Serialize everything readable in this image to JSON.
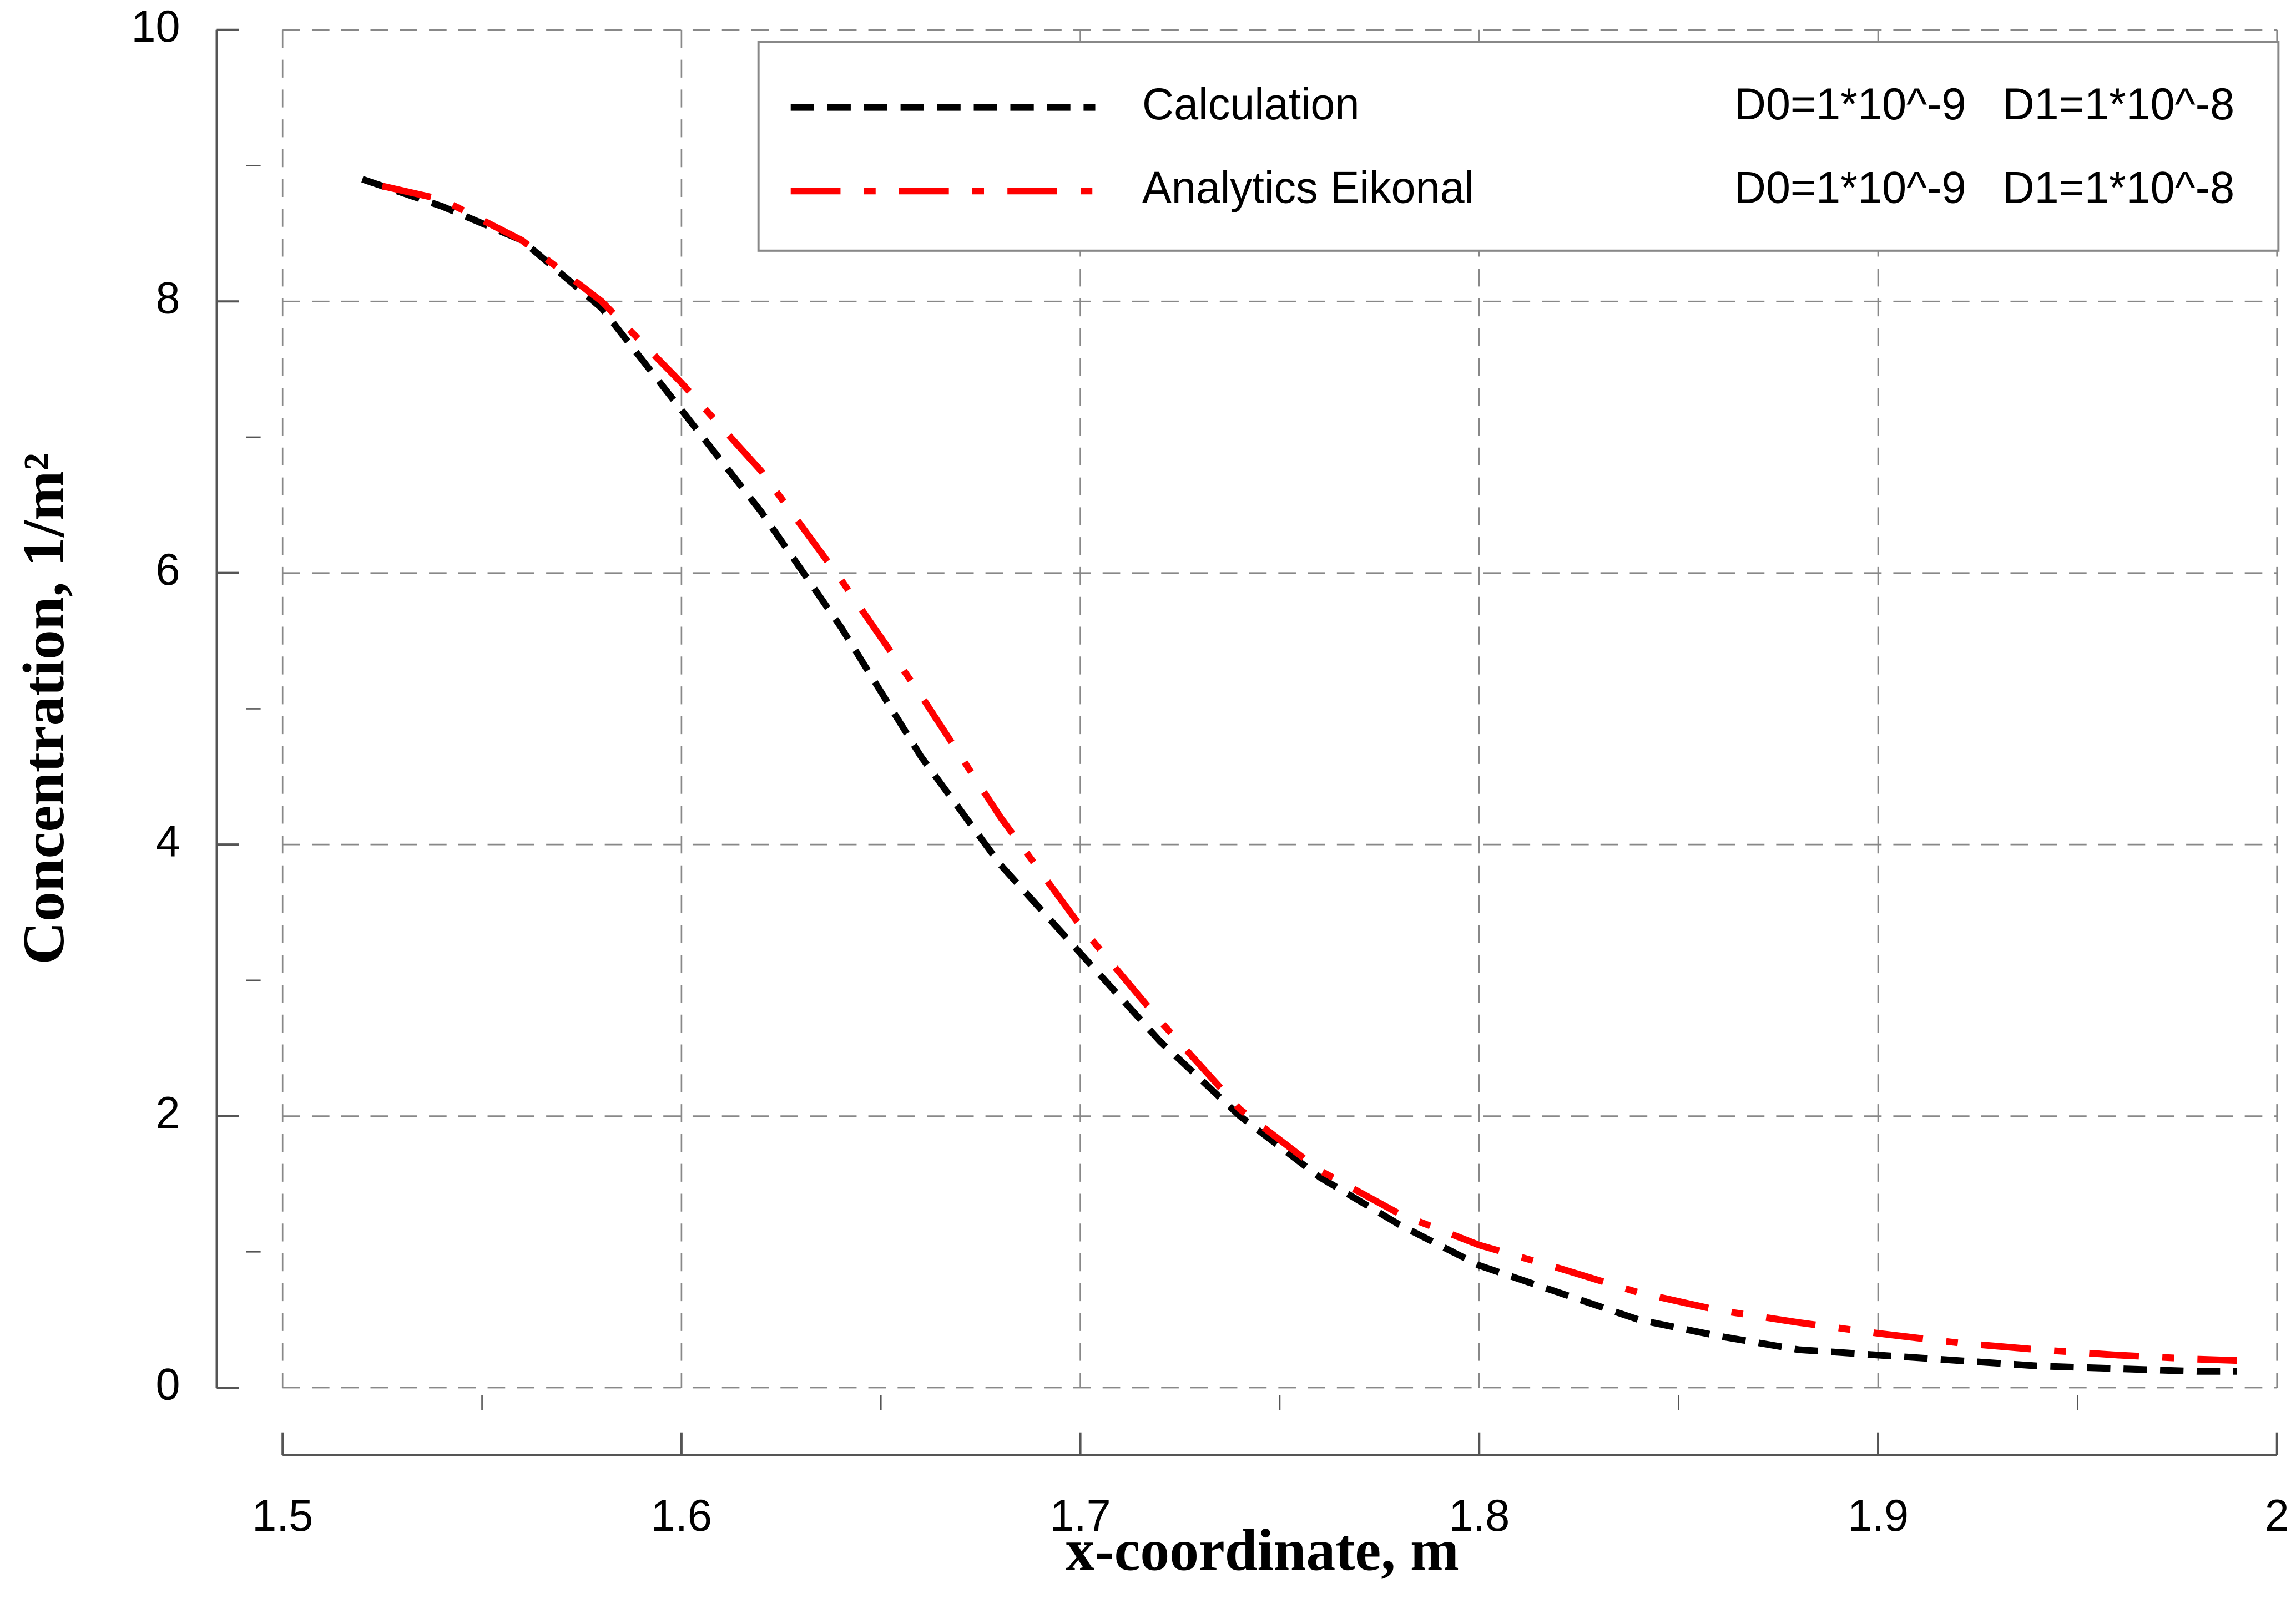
{
  "chart_data": {
    "type": "line",
    "x_label": "x-coordinate, m",
    "y_label": "Concentration, 1/m²",
    "xlim": [
      1.5,
      2
    ],
    "xticks": [
      1.5,
      1.6,
      1.7,
      1.8,
      1.9,
      2
    ],
    "xminorticks": [
      1.55,
      1.65,
      1.75,
      1.85,
      1.95
    ],
    "ylim": [
      0,
      10
    ],
    "yticks": [
      0,
      2,
      4,
      6,
      8,
      10
    ],
    "yminorticks": [
      1,
      3,
      5,
      7,
      9
    ],
    "grid": true,
    "legend": "upper right",
    "series": [
      {
        "name": "Calculation",
        "description": "D0=1*10^-9   D1=1*10^-8",
        "color": "#000000",
        "dash": "dashed",
        "x": [
          1.52,
          1.54,
          1.56,
          1.58,
          1.6,
          1.62,
          1.64,
          1.66,
          1.68,
          1.7,
          1.72,
          1.74,
          1.76,
          1.78,
          1.8,
          1.82,
          1.84,
          1.86,
          1.88,
          1.9,
          1.92,
          1.94,
          1.96,
          1.98,
          1.99
        ],
        "values": [
          8.9,
          8.7,
          8.45,
          7.95,
          7.2,
          6.45,
          5.6,
          4.65,
          3.85,
          3.2,
          2.55,
          2.0,
          1.55,
          1.2,
          0.9,
          0.7,
          0.5,
          0.38,
          0.28,
          0.24,
          0.2,
          0.16,
          0.14,
          0.12,
          0.12
        ]
      },
      {
        "name": "Analytics Eikonal",
        "description": "D0=1*10^-9   D1=1*10^-8",
        "color": "#ff0000",
        "dash": "dashdot",
        "x": [
          1.525,
          1.54,
          1.56,
          1.58,
          1.6,
          1.62,
          1.64,
          1.66,
          1.68,
          1.7,
          1.72,
          1.74,
          1.76,
          1.78,
          1.8,
          1.82,
          1.84,
          1.86,
          1.88,
          1.9,
          1.92,
          1.94,
          1.96,
          1.98,
          1.99
        ],
        "values": [
          8.85,
          8.75,
          8.45,
          8.0,
          7.4,
          6.75,
          5.95,
          5.1,
          4.2,
          3.4,
          2.7,
          2.05,
          1.6,
          1.28,
          1.05,
          0.88,
          0.7,
          0.57,
          0.48,
          0.4,
          0.33,
          0.28,
          0.24,
          0.21,
          0.2
        ]
      }
    ]
  }
}
